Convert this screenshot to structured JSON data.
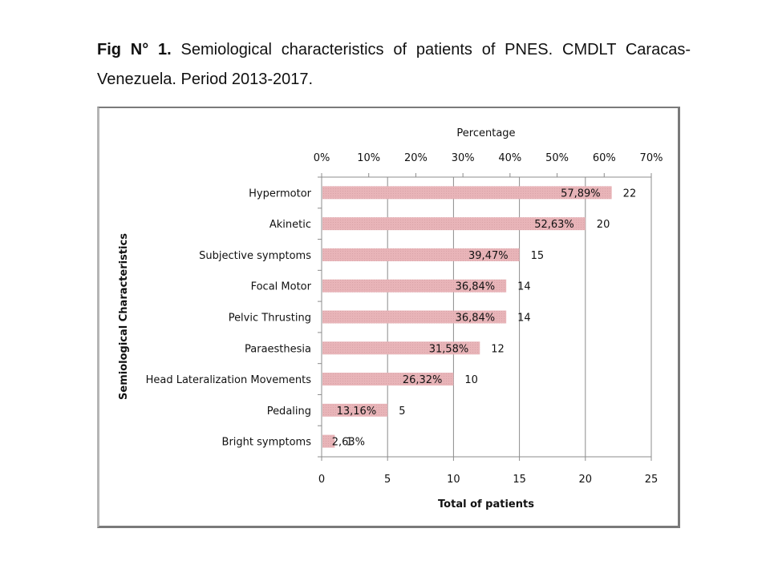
{
  "caption": {
    "bold_prefix": "Fig N° 1.",
    "text": " Semiological characteristics of patients of PNES. CMDLT Caracas-Venezuela. Period 2013-2017."
  },
  "chart_data": {
    "type": "bar",
    "orientation": "horizontal",
    "title": "",
    "xlabel": "Total of patients",
    "x2label": "Percentage",
    "ylabel": "Semiological Characteristics",
    "xlim": [
      0,
      25
    ],
    "x2lim": [
      0,
      70
    ],
    "x_ticks": [
      "0",
      "5",
      "10",
      "15",
      "20",
      "25"
    ],
    "x2_ticks": [
      "0%",
      "10%",
      "20%",
      "30%",
      "40%",
      "50%",
      "60%",
      "70%"
    ],
    "grid": "vertical",
    "categories": [
      "Hypermotor",
      "Akinetic",
      "Subjective symptoms",
      "Focal Motor",
      "Pelvic Thrusting",
      "Paraesthesia",
      "Head Lateralization Movements",
      "Pedaling",
      "Bright symptoms"
    ],
    "series": [
      {
        "name": "Total of patients",
        "values": [
          22,
          20,
          15,
          14,
          14,
          12,
          10,
          5,
          1
        ],
        "value_labels": [
          "22",
          "20",
          "15",
          "14",
          "14",
          "12",
          "10",
          "5",
          "1"
        ]
      },
      {
        "name": "Percentage",
        "values": [
          57.89,
          52.63,
          39.47,
          36.84,
          36.84,
          31.58,
          26.32,
          13.16,
          2.63
        ],
        "value_labels": [
          "57,89%",
          "52,63%",
          "39,47%",
          "36,84%",
          "36,84%",
          "31,58%",
          "26,32%",
          "13,16%",
          "2,63%"
        ]
      }
    ],
    "colors": {
      "bar": "#e8b4b8",
      "grid": "#8c8c8c",
      "axis": "#8c8c8c"
    }
  }
}
